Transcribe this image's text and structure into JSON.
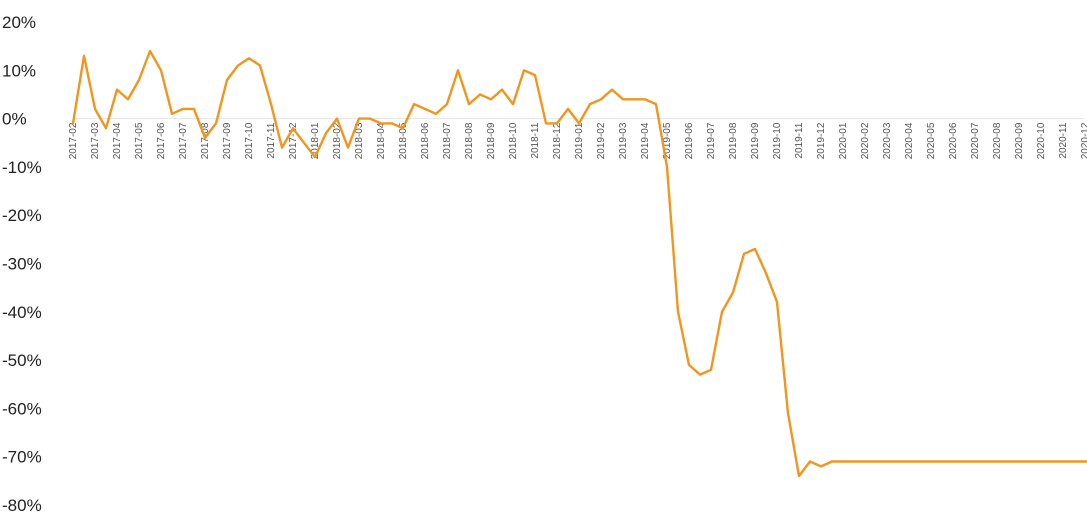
{
  "chart_data": {
    "type": "line",
    "title": "",
    "xlabel": "",
    "ylabel": "",
    "ylim": [
      -80,
      20
    ],
    "yticks": [
      20,
      10,
      0,
      -10,
      -20,
      -30,
      -40,
      -50,
      -60,
      -70,
      -80
    ],
    "ytick_labels": [
      "20%",
      "10%",
      "0%",
      "-10%",
      "-20%",
      "-30%",
      "-40%",
      "-50%",
      "-60%",
      "-70%",
      "-80%"
    ],
    "xtick_labels": [
      "2017-02",
      "2017-03",
      "2017-04",
      "2017-05",
      "2017-06",
      "2017-07",
      "2017-08",
      "2017-09",
      "2017-10",
      "2017-11",
      "2017-12",
      "2018-01",
      "2018-02",
      "2018-03",
      "2018-04",
      "2018-05",
      "2018-06",
      "2018-07",
      "2018-08",
      "2018-09",
      "2018-10",
      "2018-11",
      "2018-12",
      "2019-01",
      "2019-02",
      "2019-03",
      "2019-04",
      "2019-05",
      "2019-06",
      "2019-07",
      "2019-08",
      "2019-09",
      "2019-10",
      "2019-11",
      "2019-12",
      "2020-01",
      "2020-02",
      "2020-03",
      "2020-04",
      "2020-05",
      "2020-06",
      "2020-07",
      "2020-08",
      "2020-09",
      "2020-10",
      "2020-11",
      "2020-12"
    ],
    "grid": false,
    "line_color": "#F0961E",
    "series": [
      {
        "name": "",
        "x": [
          0,
          0.5,
          1,
          1.5,
          2,
          2.5,
          3,
          3.5,
          4,
          4.5,
          5,
          5.5,
          6,
          6.5,
          7,
          7.5,
          8,
          8.5,
          9,
          9.5,
          10,
          10.5,
          11,
          11.5,
          12,
          12.5,
          13,
          13.5,
          14,
          14.5,
          15,
          15.5,
          16,
          16.5,
          17,
          17.5,
          18,
          18.5,
          19,
          19.5,
          20,
          20.5,
          21,
          21.5,
          22,
          22.5,
          23,
          23.5,
          24,
          24.5,
          25,
          25.5,
          26,
          26.5,
          27,
          27.5,
          28,
          28.5,
          29,
          29.5,
          30,
          30.5,
          31,
          31.5,
          32,
          32.5,
          33,
          33.5,
          34,
          34.5,
          35,
          35.5,
          36,
          36.5,
          37,
          37.5,
          38,
          38.5,
          39,
          39.5,
          40,
          40.5,
          41,
          41.5,
          42,
          42.5,
          43,
          43.5,
          44,
          44.5,
          45,
          45.5,
          46,
          46.5,
          47
        ],
        "values": [
          -1,
          13,
          2,
          -2,
          6,
          4,
          8,
          14,
          10,
          1,
          2,
          2,
          -4,
          -1,
          8,
          11,
          12.5,
          11,
          3,
          -6,
          -2,
          -5,
          -8,
          -3,
          0,
          -6,
          0,
          0,
          -1,
          -1,
          -2,
          3,
          2,
          1,
          3,
          10,
          3,
          5,
          4,
          6,
          3,
          10,
          9,
          -1,
          -1,
          2,
          -1,
          3,
          4,
          6,
          4,
          4,
          4,
          3,
          -10,
          -40,
          -51,
          -53,
          -52,
          -40,
          -36,
          -28,
          -27,
          -32,
          -38,
          -61,
          -74,
          -71,
          -72,
          -71,
          -71,
          -71,
          -71,
          -71,
          -71,
          -71,
          -71,
          -71,
          -71,
          -71,
          -71,
          -71,
          -71,
          -71,
          -71,
          -71,
          -71,
          -71,
          -71,
          -71,
          -71,
          -71,
          -71,
          -71,
          -71
        ]
      }
    ]
  }
}
